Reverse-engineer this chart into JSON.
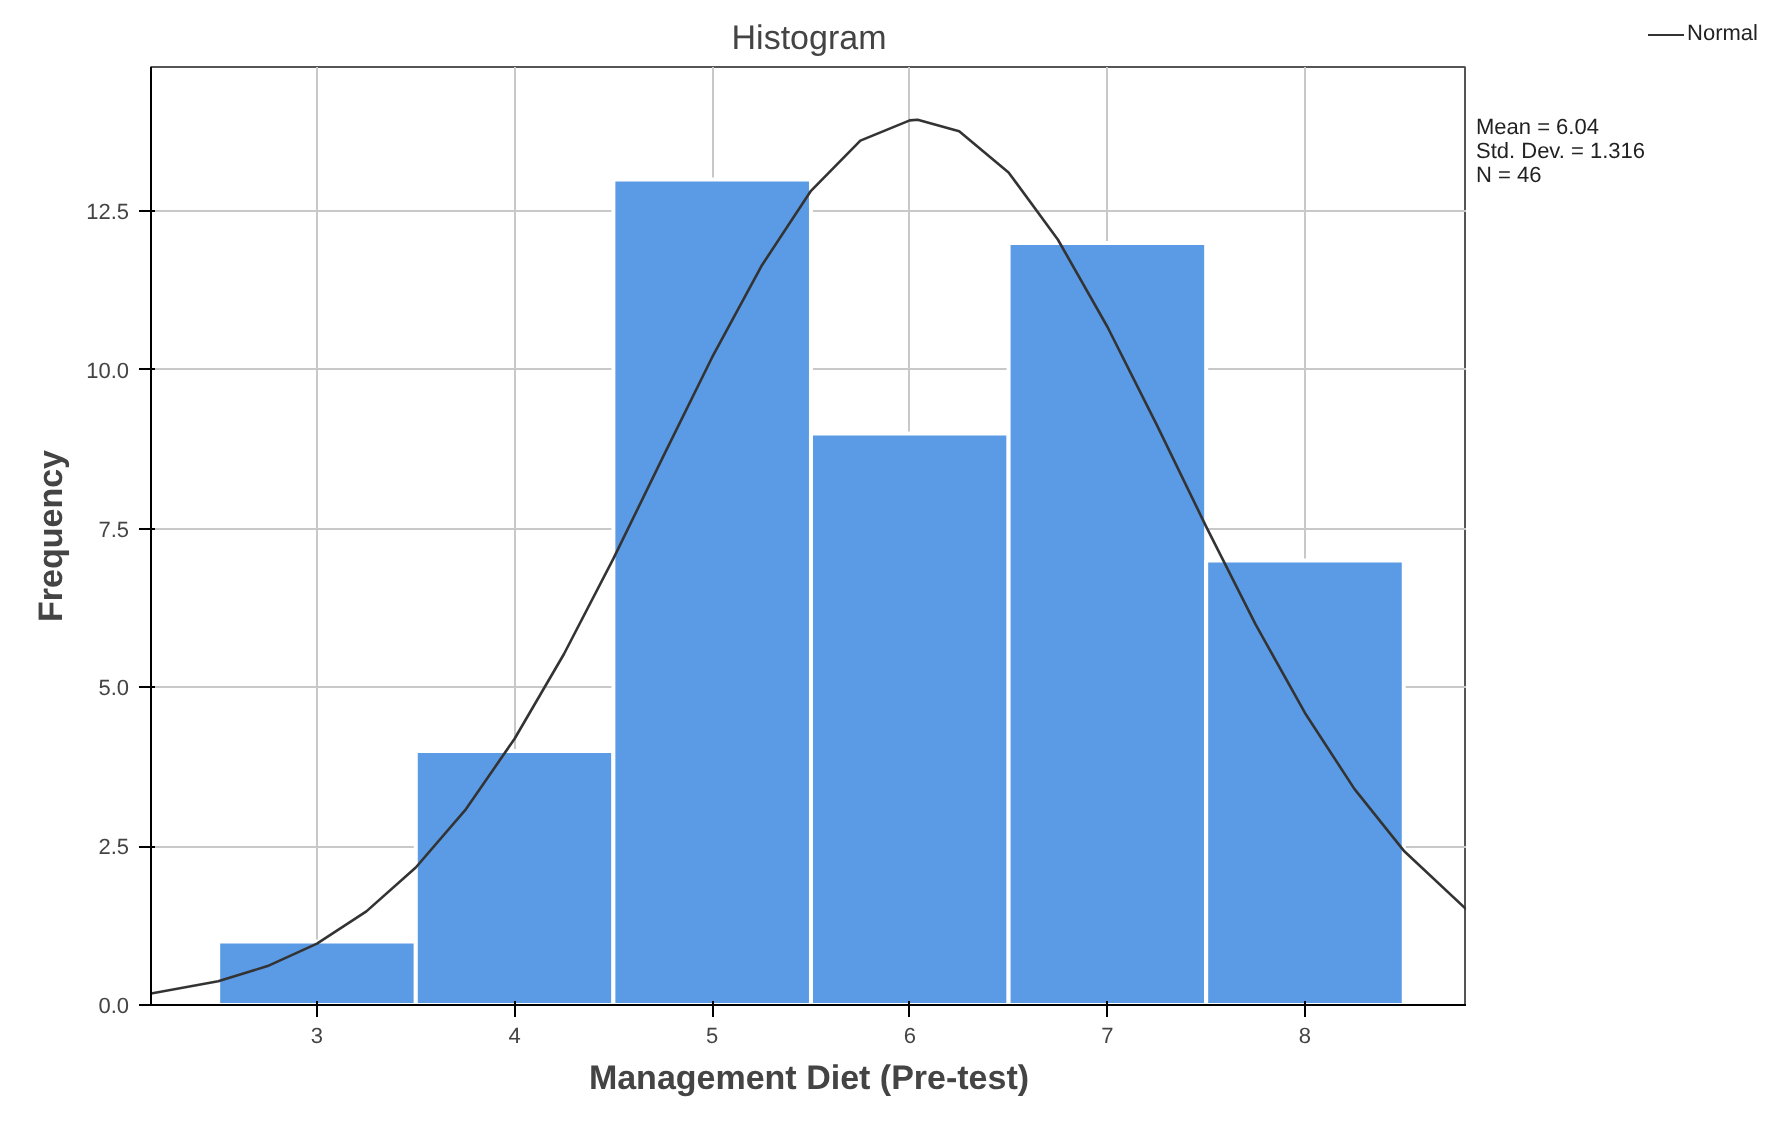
{
  "chart_data": {
    "type": "histogram",
    "title": "Histogram",
    "xlabel": "Management Diet (Pre-test)",
    "ylabel": "Frequency",
    "bins": [
      2.5,
      3.5,
      4.5,
      5.5,
      6.5,
      7.5,
      8.5
    ],
    "values": [
      1,
      4,
      13,
      9,
      12,
      7
    ],
    "color": "#5b9be6",
    "series": [
      {
        "name": "Normal",
        "type": "line",
        "color": "#333333",
        "x": [
          2.16,
          2.5,
          2.75,
          3,
          3.25,
          3.5,
          3.75,
          4,
          4.25,
          4.5,
          4.75,
          5,
          5.25,
          5.5,
          5.75,
          6,
          6.04,
          6.25,
          6.5,
          6.75,
          7,
          7.25,
          7.5,
          7.75,
          8,
          8.25,
          8.5,
          8.82
        ],
        "values": [
          0.181,
          0.374,
          0.613,
          0.967,
          1.474,
          2.165,
          3.067,
          4.192,
          5.527,
          7.028,
          8.622,
          10.2,
          11.64,
          12.82,
          13.61,
          13.93,
          13.94,
          13.76,
          13.11,
          12.05,
          10.68,
          9.135,
          7.533,
          5.993,
          4.599,
          3.403,
          2.43,
          1.497
        ]
      }
    ],
    "xlim": [
      2.16,
      8.82
    ],
    "ylim": [
      0,
      14.77
    ],
    "xticks": [
      3,
      4,
      5,
      6,
      7,
      8
    ],
    "yticks": [
      {
        "value": 0,
        "label": "0.0"
      },
      {
        "value": 2.5,
        "label": "2.5"
      },
      {
        "value": 5,
        "label": "5.0"
      },
      {
        "value": 7.5,
        "label": "7.5"
      },
      {
        "value": 10,
        "label": "10.0"
      },
      {
        "value": 12.5,
        "label": "12.5"
      }
    ],
    "grid": true,
    "legend": "top right",
    "marker": "none",
    "annotations": [
      "Mean = 6.04",
      "Std. Dev. = 1.316",
      "N = 46"
    ]
  }
}
